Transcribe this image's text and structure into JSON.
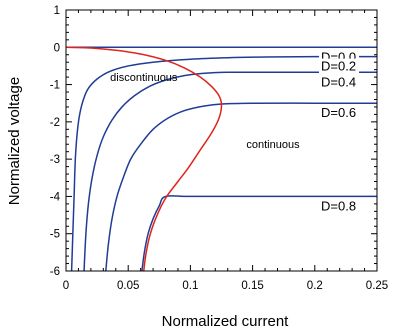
{
  "chart_data": {
    "type": "line",
    "xlabel": "Normalized current",
    "ylabel": "Normalized voltage",
    "xlim": [
      0,
      0.25
    ],
    "ylim": [
      -6,
      1
    ],
    "xticks": [
      0,
      0.05,
      0.1,
      0.15,
      0.2,
      0.25
    ],
    "xtick_labels": [
      "0",
      "0.05",
      "0.1",
      "0.15",
      "0.2",
      "0.25"
    ],
    "yticks": [
      1,
      0,
      -1,
      -2,
      -3,
      -4,
      -5,
      -6
    ],
    "ytick_labels": [
      "1",
      "0",
      "-1",
      "-2",
      "-3",
      "-4",
      "-5",
      "-6"
    ],
    "minor_ticks": true,
    "grid": false,
    "series": [
      {
        "name": "D=0.0",
        "color": "#1f3c96",
        "x": [
          0.0,
          0.03,
          0.06,
          0.09,
          0.12,
          0.15,
          0.2,
          0.25
        ],
        "y": [
          0.0,
          0.0,
          0.0,
          0.0,
          0.0,
          0.0,
          0.0,
          0.0
        ]
      },
      {
        "name": "D=0.2",
        "color": "#1f3c96",
        "x": [
          0.0045,
          0.0055,
          0.0065,
          0.0075,
          0.009,
          0.011,
          0.014,
          0.018,
          0.025,
          0.035,
          0.05,
          0.07,
          0.1,
          0.13,
          0.16,
          0.2,
          0.25
        ],
        "y": [
          -6.0,
          -5.0,
          -4.0,
          -3.0,
          -2.3,
          -1.8,
          -1.4,
          -1.1,
          -0.85,
          -0.65,
          -0.5,
          -0.4,
          -0.32,
          -0.28,
          -0.26,
          -0.25,
          -0.25
        ]
      },
      {
        "name": "D=0.4",
        "color": "#1f3c96",
        "x": [
          0.0145,
          0.016,
          0.018,
          0.021,
          0.025,
          0.03,
          0.037,
          0.045,
          0.055,
          0.067,
          0.08,
          0.095,
          0.11,
          0.13,
          0.16,
          0.2,
          0.25
        ],
        "y": [
          -6.0,
          -5.0,
          -4.2,
          -3.5,
          -2.9,
          -2.4,
          -1.95,
          -1.6,
          -1.3,
          -1.05,
          -0.88,
          -0.76,
          -0.7,
          -0.67,
          -0.67,
          -0.67,
          -0.67
        ]
      },
      {
        "name": "D=0.6",
        "color": "#1f3c96",
        "x": [
          0.032,
          0.034,
          0.037,
          0.041,
          0.046,
          0.052,
          0.06,
          0.07,
          0.082,
          0.095,
          0.11,
          0.125,
          0.15,
          0.2,
          0.25
        ],
        "y": [
          -6.0,
          -5.3,
          -4.6,
          -4.0,
          -3.5,
          -3.0,
          -2.6,
          -2.2,
          -1.9,
          -1.7,
          -1.58,
          -1.52,
          -1.5,
          -1.5,
          -1.5
        ]
      },
      {
        "name": "D=0.8",
        "color": "#1f3c96",
        "x": [
          0.061,
          0.063,
          0.066,
          0.07,
          0.075,
          0.08,
          0.1,
          0.15,
          0.2,
          0.25
        ],
        "y": [
          -6.0,
          -5.5,
          -5.0,
          -4.6,
          -4.25,
          -4.0,
          -4.0,
          -4.0,
          -4.0,
          -4.0
        ]
      },
      {
        "name": "",
        "color": "#e0241b",
        "x": [
          0.0,
          0.02,
          0.04,
          0.06,
          0.08,
          0.095,
          0.108,
          0.117,
          0.123,
          0.125,
          0.123,
          0.117,
          0.108,
          0.098,
          0.09,
          0.08,
          0.072,
          0.067,
          0.064,
          0.0625
        ],
        "y": [
          0.0,
          -0.02,
          -0.08,
          -0.18,
          -0.35,
          -0.55,
          -0.8,
          -1.05,
          -1.3,
          -1.55,
          -1.9,
          -2.3,
          -2.75,
          -3.25,
          -3.6,
          -4.05,
          -4.6,
          -5.1,
          -5.6,
          -6.0
        ]
      }
    ],
    "annotations": [
      {
        "text": "discontinuous",
        "x": 0.0355,
        "y": -0.8
      },
      {
        "text": "continuous",
        "x": 0.145,
        "y": -2.6
      },
      {
        "text": "D=0.0",
        "x": 0.205,
        "y": 0.0
      },
      {
        "text": "D=0.2",
        "x": 0.205,
        "y": -0.25
      },
      {
        "text": "D=0.4",
        "x": 0.205,
        "y": -0.67
      },
      {
        "text": "D=0.6",
        "x": 0.205,
        "y": -1.5
      },
      {
        "text": "D=0.8",
        "x": 0.205,
        "y": -4.0
      }
    ]
  }
}
